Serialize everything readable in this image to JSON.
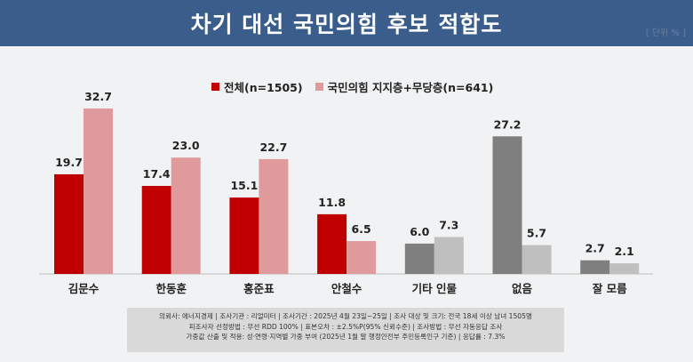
{
  "header": {
    "title": "차기 대선 국민의힘 후보 적합도",
    "unit": "[ 단위 % ]"
  },
  "legend": [
    {
      "label": "전체(n=1505)",
      "color": "#c00000"
    },
    {
      "label": "국민의힘 지지층+무당층(n=641)",
      "color": "#e09a9b"
    }
  ],
  "chart_data": {
    "type": "bar",
    "categories": [
      "김문수",
      "한동훈",
      "홍준표",
      "안철수",
      "기타 인물",
      "없음",
      "잘 모름"
    ],
    "series": [
      {
        "name": "전체(n=1505)",
        "values": [
          19.7,
          17.4,
          15.1,
          11.8,
          6.0,
          27.2,
          2.7
        ],
        "colors": [
          "#c00000",
          "#c00000",
          "#c00000",
          "#c00000",
          "#7f7f7f",
          "#7f7f7f",
          "#7f7f7f"
        ]
      },
      {
        "name": "국민의힘 지지층+무당층(n=641)",
        "values": [
          32.7,
          23.0,
          22.7,
          6.5,
          7.3,
          5.7,
          2.1
        ],
        "colors": [
          "#e09a9b",
          "#e09a9b",
          "#e09a9b",
          "#e09a9b",
          "#bfbfbf",
          "#bfbfbf",
          "#bfbfbf"
        ]
      }
    ],
    "value_labels": [
      [
        "19.7",
        "17.4",
        "15.1",
        "11.8",
        "6.0",
        "27.2",
        "2.7"
      ],
      [
        "32.7",
        "23.0",
        "22.7",
        "6.5",
        "7.3",
        "5.7",
        "2.1"
      ]
    ],
    "ylim": [
      0,
      32.7
    ],
    "grid": false
  },
  "footer": {
    "lines": [
      "의뢰사: 에너지경제 | 조사기관 : 리얼미터 | 조사기간 : 2025년 4월 23일~25일 | 조사 대상 및 크기: 전국 18세 이상 남녀 1505명",
      "피조사자 선정방법 : 무선 RDD 100% | 표본오차 : ±2.5%P(95% 신뢰수준) | 조사방법 : 무선 자동응답 조사",
      "가중값 산출 및 적용: 성·연령·지역별 가중 부여 (2025년 1월 말 행정안전부 주민등록인구 기준) | 응답률 : 7.3%"
    ]
  }
}
